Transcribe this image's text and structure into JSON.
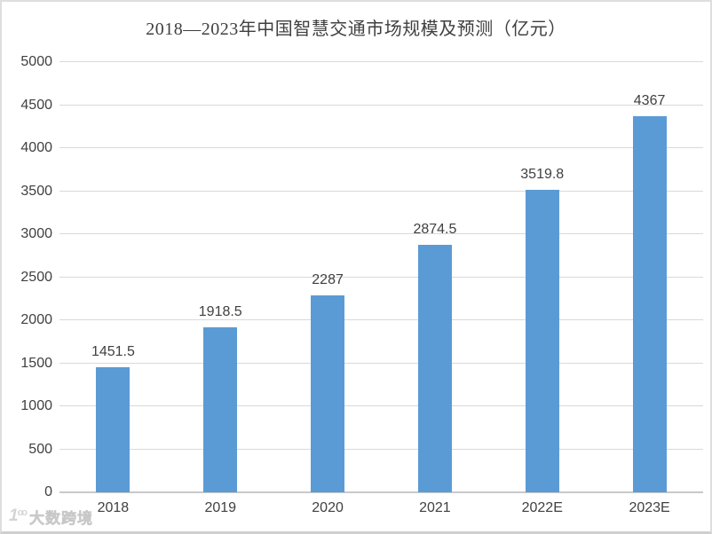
{
  "chart_data": {
    "type": "bar",
    "title": "2018—2023年中国智慧交通市场规模及预测（亿元）",
    "categories": [
      "2018",
      "2019",
      "2020",
      "2021",
      "2022E",
      "2023E"
    ],
    "values": [
      1451.5,
      1918.5,
      2287,
      2874.5,
      3519.8,
      4367
    ],
    "value_labels": [
      "1451.5",
      "1918.5",
      "2287",
      "2874.5",
      "3519.8",
      "4367"
    ],
    "xlabel": "",
    "ylabel": "",
    "ylim": [
      0,
      5000
    ],
    "ytick_step": 500,
    "ytick_labels": [
      "0",
      "500",
      "1000",
      "1500",
      "2000",
      "2500",
      "3000",
      "3500",
      "4000",
      "4500",
      "5000"
    ],
    "grid": true,
    "legend_position": "none",
    "bar_color": "#5B9BD5",
    "gridline_color": "#D9D9D9",
    "axis_line_color": "#C9C9C9",
    "text_color": "#404040"
  },
  "watermark": {
    "logo": "1oo",
    "text": "大数跨境"
  }
}
